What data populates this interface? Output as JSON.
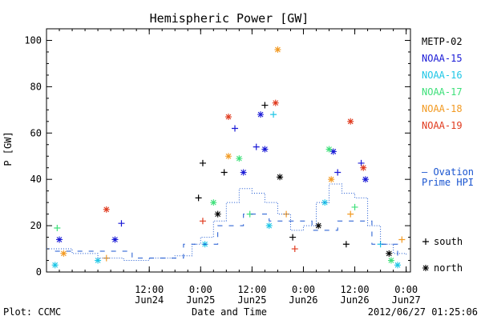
{
  "chart_data": {
    "type": "scatter",
    "title": "Hemispheric Power [GW]",
    "xlabel": "Date and Time",
    "ylabel": "P [GW]",
    "xlim": [
      "2012-06-23T12:00",
      "2012-06-27T01:00"
    ],
    "ylim": [
      0,
      105
    ],
    "y_ticks": [
      0,
      20,
      40,
      60,
      80,
      100
    ],
    "x_ticks": [
      {
        "time": "2012-06-24T12:00",
        "line1": "12:00",
        "line2": "Jun24"
      },
      {
        "time": "2012-06-25T00:00",
        "line1": "0:00",
        "line2": "Jun25"
      },
      {
        "time": "2012-06-25T12:00",
        "line1": "12:00",
        "line2": "Jun25"
      },
      {
        "time": "2012-06-26T00:00",
        "line1": "0:00",
        "line2": "Jun26"
      },
      {
        "time": "2012-06-26T12:00",
        "line1": "12:00",
        "line2": "Jun26"
      },
      {
        "time": "2012-06-27T00:00",
        "line1": "0:00",
        "line2": "Jun27"
      }
    ],
    "grid": false,
    "legend_position": "right",
    "series": [
      {
        "name": "METP-02",
        "color": "#000000",
        "points": [
          {
            "x": "2012-06-24T23:30",
            "y": 32,
            "m": "+"
          },
          {
            "x": "2012-06-25T00:30",
            "y": 47,
            "m": "+"
          },
          {
            "x": "2012-06-25T05:30",
            "y": 43,
            "m": "+"
          },
          {
            "x": "2012-06-25T04:00",
            "y": 25,
            "m": "*"
          },
          {
            "x": "2012-06-25T15:00",
            "y": 72,
            "m": "+"
          },
          {
            "x": "2012-06-25T18:30",
            "y": 41,
            "m": "*"
          },
          {
            "x": "2012-06-25T21:30",
            "y": 15,
            "m": "+"
          },
          {
            "x": "2012-06-26T03:30",
            "y": 20,
            "m": "*"
          },
          {
            "x": "2012-06-26T10:00",
            "y": 12,
            "m": "+"
          },
          {
            "x": "2012-06-26T20:00",
            "y": 8,
            "m": "*"
          }
        ]
      },
      {
        "name": "NOAA-15",
        "color": "#1a1ad6",
        "points": [
          {
            "x": "2012-06-23T15:00",
            "y": 14,
            "m": "*"
          },
          {
            "x": "2012-06-24T05:30",
            "y": 21,
            "m": "+"
          },
          {
            "x": "2012-06-24T04:00",
            "y": 14,
            "m": "*"
          },
          {
            "x": "2012-06-25T08:00",
            "y": 62,
            "m": "+"
          },
          {
            "x": "2012-06-25T13:00",
            "y": 54,
            "m": "+"
          },
          {
            "x": "2012-06-25T14:00",
            "y": 68,
            "m": "*"
          },
          {
            "x": "2012-06-25T15:00",
            "y": 53,
            "m": "*"
          },
          {
            "x": "2012-06-25T10:00",
            "y": 43,
            "m": "*"
          },
          {
            "x": "2012-06-26T07:00",
            "y": 52,
            "m": "*"
          },
          {
            "x": "2012-06-26T08:00",
            "y": 43,
            "m": "+"
          },
          {
            "x": "2012-06-26T13:30",
            "y": 47,
            "m": "+"
          },
          {
            "x": "2012-06-26T14:30",
            "y": 40,
            "m": "*"
          }
        ]
      },
      {
        "name": "NOAA-16",
        "color": "#1ec6e6",
        "points": [
          {
            "x": "2012-06-23T14:00",
            "y": 3,
            "m": "*"
          },
          {
            "x": "2012-06-24T00:00",
            "y": 5,
            "m": "*"
          },
          {
            "x": "2012-06-25T01:00",
            "y": 12,
            "m": "*"
          },
          {
            "x": "2012-06-25T17:00",
            "y": 68,
            "m": "+"
          },
          {
            "x": "2012-06-25T16:00",
            "y": 20,
            "m": "*"
          },
          {
            "x": "2012-06-26T05:00",
            "y": 30,
            "m": "*"
          },
          {
            "x": "2012-06-26T18:00",
            "y": 12,
            "m": "+"
          },
          {
            "x": "2012-06-26T22:00",
            "y": 3,
            "m": "*"
          }
        ]
      },
      {
        "name": "NOAA-17",
        "color": "#3ee07a",
        "points": [
          {
            "x": "2012-06-23T14:30",
            "y": 19,
            "m": "+"
          },
          {
            "x": "2012-06-25T03:00",
            "y": 30,
            "m": "*"
          },
          {
            "x": "2012-06-25T09:00",
            "y": 49,
            "m": "*"
          },
          {
            "x": "2012-06-25T11:30",
            "y": 25,
            "m": "+"
          },
          {
            "x": "2012-06-26T06:00",
            "y": 53,
            "m": "*"
          },
          {
            "x": "2012-06-26T12:00",
            "y": 28,
            "m": "+"
          },
          {
            "x": "2012-06-26T20:30",
            "y": 5,
            "m": "*"
          }
        ]
      },
      {
        "name": "NOAA-18",
        "color": "#f29a22",
        "points": [
          {
            "x": "2012-06-23T16:00",
            "y": 8,
            "m": "*"
          },
          {
            "x": "2012-06-24T02:00",
            "y": 6,
            "m": "+"
          },
          {
            "x": "2012-06-25T06:30",
            "y": 50,
            "m": "*"
          },
          {
            "x": "2012-06-25T18:00",
            "y": 96,
            "m": "*"
          },
          {
            "x": "2012-06-25T20:00",
            "y": 25,
            "m": "+"
          },
          {
            "x": "2012-06-26T06:30",
            "y": 40,
            "m": "*"
          },
          {
            "x": "2012-06-26T11:00",
            "y": 25,
            "m": "+"
          },
          {
            "x": "2012-06-26T23:00",
            "y": 14,
            "m": "+"
          }
        ]
      },
      {
        "name": "NOAA-19",
        "color": "#e03a1e",
        "points": [
          {
            "x": "2012-06-24T02:00",
            "y": 27,
            "m": "*"
          },
          {
            "x": "2012-06-25T00:30",
            "y": 22,
            "m": "+"
          },
          {
            "x": "2012-06-25T06:30",
            "y": 67,
            "m": "*"
          },
          {
            "x": "2012-06-25T17:30",
            "y": 73,
            "m": "*"
          },
          {
            "x": "2012-06-26T11:00",
            "y": 65,
            "m": "*"
          },
          {
            "x": "2012-06-26T14:00",
            "y": 45,
            "m": "*"
          },
          {
            "x": "2012-06-25T22:00",
            "y": 10,
            "m": "+"
          }
        ]
      },
      {
        "name": "Ovation Prime HPI",
        "color": "#1a55d0",
        "style": "dotted-step",
        "points": [
          {
            "x": "2012-06-23T12:00",
            "y": 10
          },
          {
            "x": "2012-06-23T18:00",
            "y": 8
          },
          {
            "x": "2012-06-24T00:00",
            "y": 6
          },
          {
            "x": "2012-06-24T06:00",
            "y": 5
          },
          {
            "x": "2012-06-24T12:00",
            "y": 6
          },
          {
            "x": "2012-06-24T18:00",
            "y": 7
          },
          {
            "x": "2012-06-24T22:00",
            "y": 12
          },
          {
            "x": "2012-06-25T00:00",
            "y": 15
          },
          {
            "x": "2012-06-25T03:00",
            "y": 22
          },
          {
            "x": "2012-06-25T06:00",
            "y": 30
          },
          {
            "x": "2012-06-25T09:00",
            "y": 36
          },
          {
            "x": "2012-06-25T12:00",
            "y": 34
          },
          {
            "x": "2012-06-25T15:00",
            "y": 30
          },
          {
            "x": "2012-06-25T18:00",
            "y": 25
          },
          {
            "x": "2012-06-25T21:00",
            "y": 18
          },
          {
            "x": "2012-06-26T00:00",
            "y": 20
          },
          {
            "x": "2012-06-26T03:00",
            "y": 30
          },
          {
            "x": "2012-06-26T06:00",
            "y": 38
          },
          {
            "x": "2012-06-26T09:00",
            "y": 34
          },
          {
            "x": "2012-06-26T12:00",
            "y": 32
          },
          {
            "x": "2012-06-26T15:00",
            "y": 20
          },
          {
            "x": "2012-06-26T18:00",
            "y": 12
          },
          {
            "x": "2012-06-26T21:00",
            "y": 8
          },
          {
            "x": "2012-06-27T00:00",
            "y": 7
          }
        ]
      },
      {
        "name": "Ovation Prime HPI dashes",
        "color": "#1a55d0",
        "style": "dash-step",
        "points": [
          {
            "x": "2012-06-23T14:00",
            "y": 9
          },
          {
            "x": "2012-06-24T08:00",
            "y": 6
          },
          {
            "x": "2012-06-24T20:00",
            "y": 12
          },
          {
            "x": "2012-06-25T04:00",
            "y": 20
          },
          {
            "x": "2012-06-25T10:00",
            "y": 25
          },
          {
            "x": "2012-06-25T16:00",
            "y": 22
          },
          {
            "x": "2012-06-26T02:00",
            "y": 18
          },
          {
            "x": "2012-06-26T08:00",
            "y": 22
          },
          {
            "x": "2012-06-26T16:00",
            "y": 12
          },
          {
            "x": "2012-06-26T22:00",
            "y": 6
          }
        ]
      }
    ],
    "legend": [
      "METP-02",
      "NOAA-15",
      "NOAA-16",
      "NOAA-17",
      "NOAA-18",
      "NOAA-19"
    ],
    "ovation_label_line1": "— Ovation",
    "ovation_label_line2": "Prime HPI",
    "marker_legend": [
      {
        "symbol": "+",
        "label": "south"
      },
      {
        "symbol": "*",
        "label": "north"
      }
    ]
  },
  "footer": {
    "left": "Plot: CCMC",
    "right": "2012/06/27 01:25:06"
  }
}
